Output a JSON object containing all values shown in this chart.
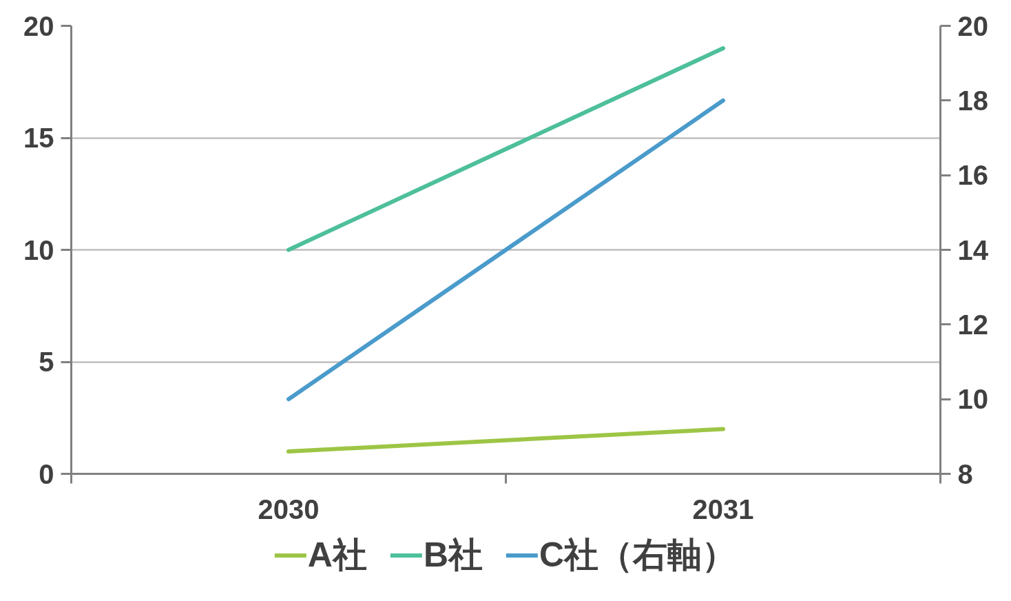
{
  "chart_data": {
    "type": "line",
    "categories": [
      "2030",
      "2031"
    ],
    "series": [
      {
        "name": "A社",
        "color": "#9dc545",
        "values": [
          1,
          2
        ]
      },
      {
        "name": "B社",
        "color": "#4dbf9b",
        "values": [
          10,
          19
        ]
      },
      {
        "name": "C社（右軸）",
        "color": "#4a9bcb",
        "values": [
          10,
          18
        ],
        "axis": "y2"
      }
    ],
    "ylim": [
      0,
      20
    ],
    "yticks": [
      0,
      5,
      10,
      15,
      20
    ],
    "y2lim": [
      8,
      20
    ],
    "y2ticks": [
      8,
      10,
      12,
      14,
      16,
      18,
      20
    ],
    "grid": "y",
    "legend": "bottom",
    "marker": "none",
    "line_style": "solid"
  }
}
